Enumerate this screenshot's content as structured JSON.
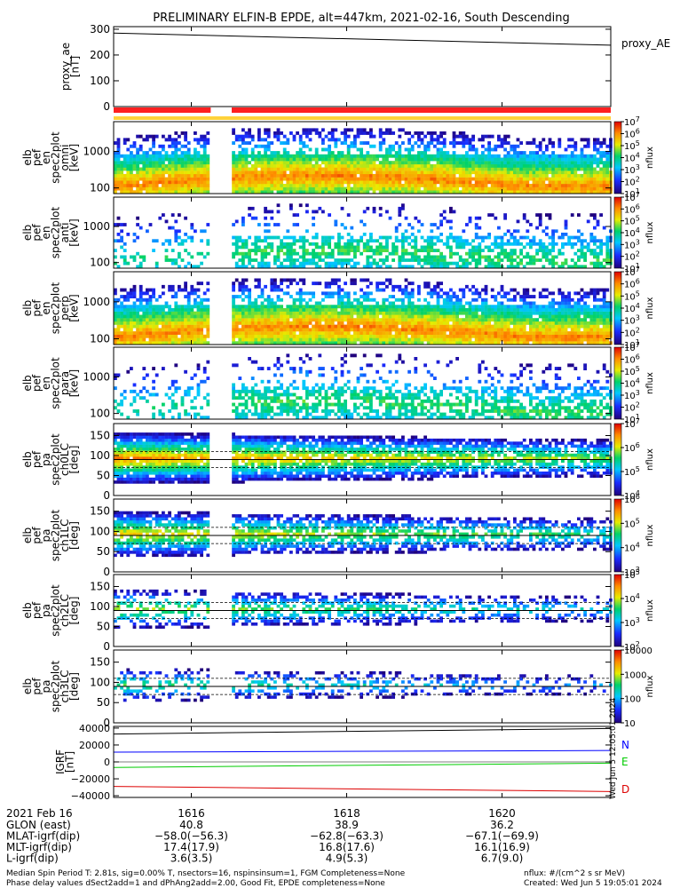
{
  "title": "PRELIMINARY ELFIN-B EPDE, alt=447km, 2021-02-16, South Descending",
  "created": "Created: Wed Jun  5 19:05:01 2024",
  "footer_left": [
    "Median Spin Period T: 2.81s, sig=0.00% T, nsectors=16, nspinsinsum=1, FGM Completeness=None",
    "Phase delay values dSect2add=1 and dPhAng2add=2.00, Good Fit, EPDE completeness=None"
  ],
  "footer_units": "nflux: #/(cm^2 s sr MeV)",
  "stamp_text": "Wed Jun 5 12:05:01 2024",
  "colors": {
    "fast": "#ff2020",
    "slow": "#ffd23a",
    "N": "#0000ff",
    "E": "#00cc00",
    "D": "#dd0000"
  },
  "chart_data": {
    "type": "heatmap",
    "x_range": [
      1615.0,
      1621.4
    ],
    "x_ticks": [
      1616,
      1618,
      1620
    ],
    "gap": [
      1616.25,
      1616.52
    ],
    "panels": [
      {
        "kind": "line",
        "ylabel": [
          "proxy_ae",
          "[nT]"
        ],
        "yticks": [
          0,
          100,
          200,
          300
        ],
        "ytick_labels": [
          "0",
          "100",
          "200",
          "300"
        ],
        "ylim": [
          0,
          310
        ],
        "legend": "proxy_AE",
        "series": {
          "x": [
            1615.0,
            1621.4
          ],
          "y": [
            285,
            238
          ]
        }
      },
      {
        "kind": "spec",
        "ylabel": [
          "elb",
          "pef",
          "en",
          "spec2plot",
          "omni",
          "[keV]"
        ],
        "yscale": "log",
        "ylim": [
          70,
          6500
        ],
        "yticks": [
          100,
          1000
        ],
        "ytick_labels": [
          "100",
          "1000"
        ],
        "cbar": {
          "ticks": [
            "10^1",
            "10^2",
            "10^3",
            "10^4",
            "10^5",
            "10^6",
            "10^7"
          ],
          "label": "nflux"
        }
      },
      {
        "kind": "spec",
        "ylabel": [
          "elb",
          "pef",
          "en",
          "spec2plot",
          "anti",
          "[keV]"
        ],
        "yscale": "log",
        "ylim": [
          70,
          6500
        ],
        "yticks": [
          100,
          1000
        ],
        "ytick_labels": [
          "100",
          "1000"
        ],
        "cbar": {
          "ticks": [
            "10^1",
            "10^2",
            "10^3",
            "10^4",
            "10^5",
            "10^6",
            "10^7"
          ],
          "label": "nflux"
        }
      },
      {
        "kind": "spec",
        "ylabel": [
          "elb",
          "pef",
          "en",
          "spec2plot",
          "perp",
          "[keV]"
        ],
        "yscale": "log",
        "ylim": [
          70,
          6500
        ],
        "yticks": [
          100,
          1000
        ],
        "ytick_labels": [
          "100",
          "1000"
        ],
        "cbar": {
          "ticks": [
            "10^1",
            "10^2",
            "10^3",
            "10^4",
            "10^5",
            "10^6",
            "10^7"
          ],
          "label": "nflux"
        }
      },
      {
        "kind": "spec",
        "ylabel": [
          "elb",
          "pef",
          "en",
          "spec2plot",
          "para",
          "[keV]"
        ],
        "yscale": "log",
        "ylim": [
          70,
          6500
        ],
        "yticks": [
          100,
          1000
        ],
        "ytick_labels": [
          "100",
          "1000"
        ],
        "cbar": {
          "ticks": [
            "10^1",
            "10^2",
            "10^3",
            "10^4",
            "10^5",
            "10^6",
            "10^7"
          ],
          "label": "nflux"
        }
      },
      {
        "kind": "pa",
        "ylabel": [
          "elb",
          "pef",
          "pa",
          "spec2plot",
          "ch0LC",
          "[deg]"
        ],
        "ylim": [
          0,
          180
        ],
        "yticks": [
          0,
          50,
          100,
          150
        ],
        "ytick_labels": [
          "0",
          "50",
          "100",
          "150"
        ],
        "cbar": {
          "ticks": [
            "10^4",
            "10^5",
            "10^6",
            "10^7"
          ],
          "label": "nflux"
        }
      },
      {
        "kind": "pa",
        "ylabel": [
          "elb",
          "pef",
          "pa",
          "spec2plot",
          "ch1LC",
          "[deg]"
        ],
        "ylim": [
          0,
          180
        ],
        "yticks": [
          0,
          50,
          100,
          150
        ],
        "ytick_labels": [
          "0",
          "50",
          "100",
          "150"
        ],
        "cbar": {
          "ticks": [
            "10^3",
            "10^4",
            "10^5",
            "10^6"
          ],
          "label": "nflux"
        }
      },
      {
        "kind": "pa",
        "ylabel": [
          "elb",
          "pef",
          "pa",
          "spec2plot",
          "ch2LC",
          "[deg]"
        ],
        "ylim": [
          0,
          180
        ],
        "yticks": [
          0,
          50,
          100,
          150
        ],
        "ytick_labels": [
          "0",
          "50",
          "100",
          "150"
        ],
        "cbar": {
          "ticks": [
            "10^2",
            "10^3",
            "10^4",
            "10^5"
          ],
          "label": "nflux"
        }
      },
      {
        "kind": "pa",
        "ylabel": [
          "elb",
          "pef",
          "pa",
          "spec2plot",
          "ch3LC",
          "[deg]"
        ],
        "ylim": [
          0,
          180
        ],
        "yticks": [
          0,
          50,
          100,
          150
        ],
        "ytick_labels": [
          "0",
          "50",
          "100",
          "150"
        ],
        "cbar": {
          "ticks": [
            "10",
            "100",
            "1000",
            "10000"
          ],
          "label": "nflux"
        }
      },
      {
        "kind": "igrf",
        "ylabel": [
          "IGRF",
          "[nT]"
        ],
        "ylim": [
          -42000,
          42000
        ],
        "yticks": [
          -40000,
          -20000,
          0,
          20000,
          40000
        ],
        "ytick_labels": [
          "−40000",
          "−20000",
          "0",
          "20000",
          "40000"
        ],
        "series": [
          {
            "name": "N",
            "x": [
              1615.0,
              1621.4
            ],
            "y": [
              11500,
              13500
            ]
          },
          {
            "name": "E",
            "x": [
              1615.0,
              1621.4
            ],
            "y": [
              -6500,
              -1500
            ]
          },
          {
            "name": "D",
            "x": [
              1615.0,
              1621.4
            ],
            "y": [
              -29000,
              -35000
            ]
          },
          {
            "name": "",
            "x": [
              1615.0,
              1621.4
            ],
            "y": [
              33000,
              39500
            ]
          }
        ]
      }
    ],
    "orbit_table": {
      "date": "2021 Feb 16",
      "rows": [
        {
          "label": "GLON (east)",
          "values": [
            "40.8",
            "38.9",
            "36.2"
          ]
        },
        {
          "label": "MLAT-igrf(dip)",
          "values": [
            "−58.0(−56.3)",
            "−62.8(−63.3)",
            "−67.1(−69.9)"
          ]
        },
        {
          "label": "MLT-igrf(dip)",
          "values": [
            "17.4(17.9)",
            "16.8(17.6)",
            "16.1(16.9)"
          ]
        },
        {
          "label": "L-igrf(dip)",
          "values": [
            "3.6(3.5)",
            "4.9(5.3)",
            "6.7(9.0)"
          ]
        }
      ]
    }
  }
}
